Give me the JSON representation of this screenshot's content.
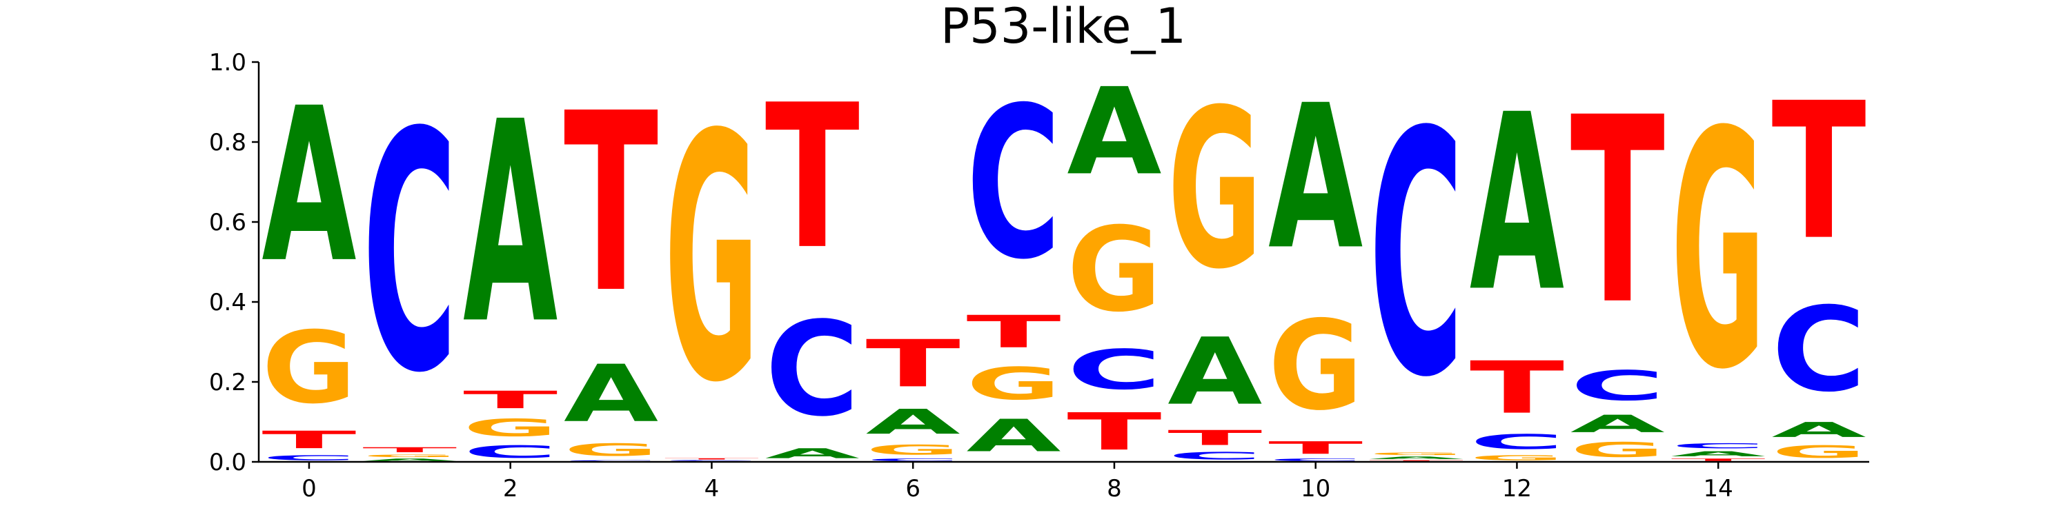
{
  "chart_data": {
    "type": "sequence-logo",
    "title": "P53-like_1",
    "xlabel": "",
    "ylabel": "",
    "ylim": [
      0,
      1.0
    ],
    "xlim": [
      -0.5,
      15.5
    ],
    "x_ticks": [
      0,
      2,
      4,
      6,
      8,
      10,
      12,
      14
    ],
    "y_ticks": [
      "0.0",
      "0.2",
      "0.4",
      "0.6",
      "0.8",
      "1.0"
    ],
    "y_tick_values": [
      0,
      0.2,
      0.4,
      0.6,
      0.8,
      1.0
    ],
    "colors": {
      "A": "#008000",
      "C": "#0000ff",
      "G": "#ffa500",
      "T": "#ff0000"
    },
    "positions": [
      {
        "pos": 0,
        "A": 0.62,
        "C": 0.02,
        "G": 0.29,
        "T": 0.07
      },
      {
        "pos": 1,
        "A": 0.01,
        "C": 0.96,
        "G": 0.01,
        "T": 0.02
      },
      {
        "pos": 2,
        "A": 0.81,
        "C": 0.05,
        "G": 0.07,
        "T": 0.07
      },
      {
        "pos": 3,
        "A": 0.23,
        "C": 0.005,
        "G": 0.05,
        "T": 0.72
      },
      {
        "pos": 4,
        "A": 0.002,
        "C": 0.003,
        "G": 0.99,
        "T": 0.005
      },
      {
        "pos": 5,
        "A": 0.04,
        "C": 0.38,
        "G": 0.001,
        "T": 0.58
      },
      {
        "pos": 6,
        "A": 0.1,
        "C": 0.01,
        "G": 0.04,
        "T": 0.19
      },
      {
        "pos": 7,
        "A": 0.13,
        "C": 0.61,
        "G": 0.13,
        "T": 0.13
      },
      {
        "pos": 8,
        "A": 0.35,
        "C": 0.16,
        "G": 0.34,
        "T": 0.15
      },
      {
        "pos": 9,
        "A": 0.27,
        "C": 0.03,
        "G": 0.64,
        "T": 0.06
      },
      {
        "pos": 10,
        "A": 0.58,
        "C": 0.01,
        "G": 0.36,
        "T": 0.05
      },
      {
        "pos": 11,
        "A": 0.01,
        "C": 0.98,
        "G": 0.01,
        "T": 0.005
      },
      {
        "pos": 12,
        "A": 0.71,
        "C": 0.06,
        "G": 0.02,
        "T": 0.21
      },
      {
        "pos": 13,
        "A": 0.07,
        "C": 0.12,
        "G": 0.06,
        "T": 0.75
      },
      {
        "pos": 14,
        "A": 0.02,
        "C": 0.02,
        "G": 0.95,
        "T": 0.01
      },
      {
        "pos": 15,
        "A": 0.06,
        "C": 0.34,
        "G": 0.05,
        "T": 0.55
      }
    ]
  }
}
